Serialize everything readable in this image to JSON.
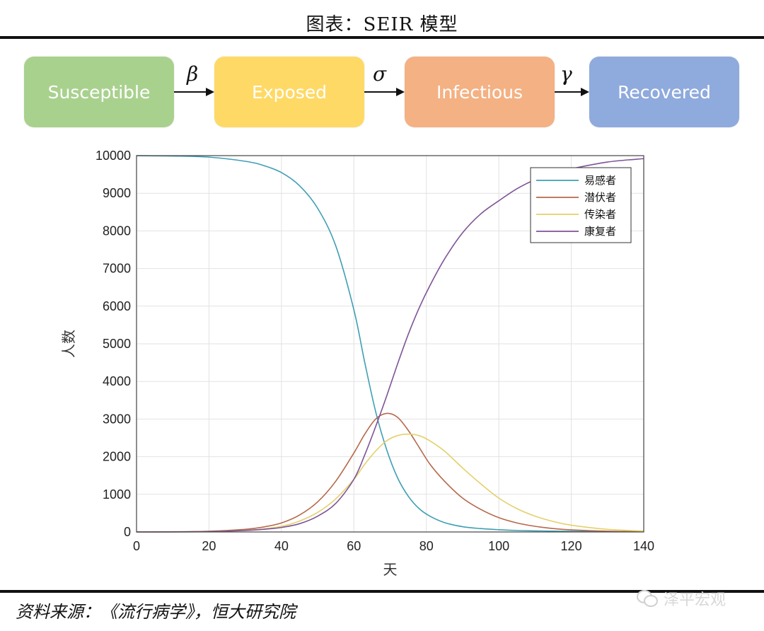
{
  "figure_title": "图表：SEIR 模型",
  "flow": {
    "boxes": [
      {
        "label": "Susceptible",
        "color": "#a9d18e"
      },
      {
        "label": "Exposed",
        "color": "#ffd966"
      },
      {
        "label": "Infectious",
        "color": "#f4b183"
      },
      {
        "label": "Recovered",
        "color": "#8faadc"
      }
    ],
    "rates": [
      "β",
      "σ",
      "γ"
    ]
  },
  "chart_data": {
    "type": "line",
    "title": "",
    "xlabel": "天",
    "ylabel": "人数",
    "xlim": [
      0,
      140
    ],
    "ylim": [
      0,
      10000
    ],
    "xticks": [
      0,
      20,
      40,
      60,
      80,
      100,
      120,
      140
    ],
    "yticks": [
      0,
      1000,
      2000,
      3000,
      4000,
      5000,
      6000,
      7000,
      8000,
      9000,
      10000
    ],
    "grid": true,
    "legend_position": "top-right",
    "x": [
      0,
      10,
      20,
      30,
      35,
      40,
      45,
      50,
      55,
      60,
      63,
      66,
      69,
      72,
      75,
      78,
      81,
      85,
      90,
      95,
      100,
      105,
      110,
      115,
      120,
      130,
      140
    ],
    "series": [
      {
        "name": "易感者",
        "color": "#3f9fb3",
        "values": [
          9998,
          9990,
          9960,
          9850,
          9740,
          9550,
          9200,
          8600,
          7600,
          5900,
          4500,
          3200,
          2200,
          1450,
          950,
          620,
          420,
          250,
          140,
          90,
          60,
          40,
          30,
          22,
          18,
          12,
          10
        ]
      },
      {
        "name": "潜伏者",
        "color": "#b5684a",
        "values": [
          1,
          5,
          20,
          70,
          130,
          240,
          450,
          800,
          1350,
          2100,
          2600,
          3000,
          3150,
          3050,
          2700,
          2250,
          1800,
          1350,
          900,
          600,
          380,
          240,
          150,
          90,
          55,
          20,
          8
        ]
      },
      {
        "name": "传染者",
        "color": "#e3d06b",
        "values": [
          0,
          3,
          10,
          40,
          80,
          150,
          290,
          520,
          880,
          1400,
          1800,
          2150,
          2420,
          2560,
          2600,
          2560,
          2420,
          2150,
          1700,
          1280,
          900,
          620,
          420,
          280,
          180,
          70,
          25
        ]
      },
      {
        "name": "康复者",
        "color": "#7e5396",
        "values": [
          0,
          2,
          10,
          40,
          70,
          120,
          220,
          420,
          760,
          1400,
          2050,
          2800,
          3600,
          4450,
          5250,
          5950,
          6550,
          7250,
          7950,
          8450,
          8800,
          9120,
          9360,
          9530,
          9650,
          9830,
          9920
        ]
      }
    ]
  },
  "source": "资料来源：《流行病学》，恒大研究院",
  "watermark": "泽平宏观"
}
